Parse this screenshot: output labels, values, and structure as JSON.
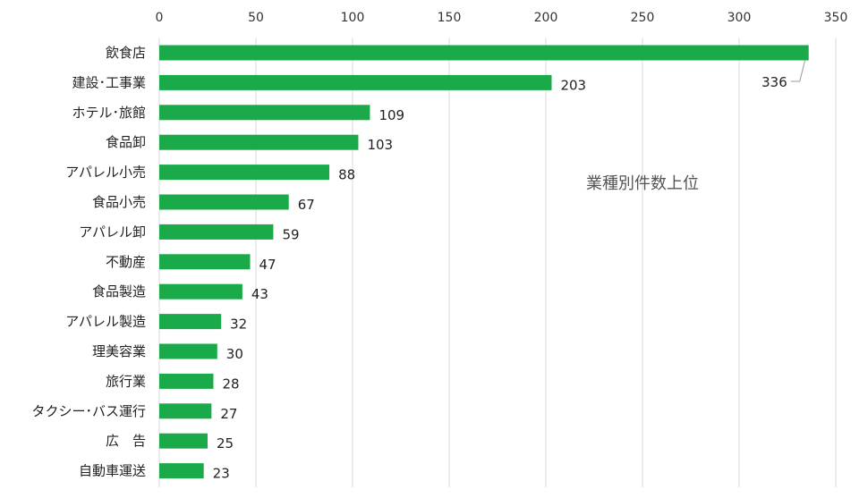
{
  "chart_data": {
    "type": "bar",
    "orientation": "horizontal",
    "categories": [
      "飲食店",
      "建設･工事業",
      "ホテル･旅館",
      "食品卸",
      "アパレル小売",
      "食品小売",
      "アパレル卸",
      "不動産",
      "食品製造",
      "アパレル製造",
      "理美容業",
      "旅行業",
      "タクシー･バス運行",
      "広　告",
      "自動車運送"
    ],
    "values": [
      336,
      203,
      109,
      103,
      88,
      67,
      59,
      47,
      43,
      32,
      30,
      28,
      27,
      25,
      23
    ],
    "title": "",
    "annotation": "業種別件数上位",
    "xlabel": "",
    "ylabel": "",
    "xlim": [
      0,
      350
    ],
    "ticks": [
      0,
      50,
      100,
      150,
      200,
      250,
      300,
      350
    ],
    "tick_position": "top",
    "grid": true,
    "legend": "none",
    "bar_color": "#1aaa4a",
    "grid_color": "#d9d9d9"
  }
}
